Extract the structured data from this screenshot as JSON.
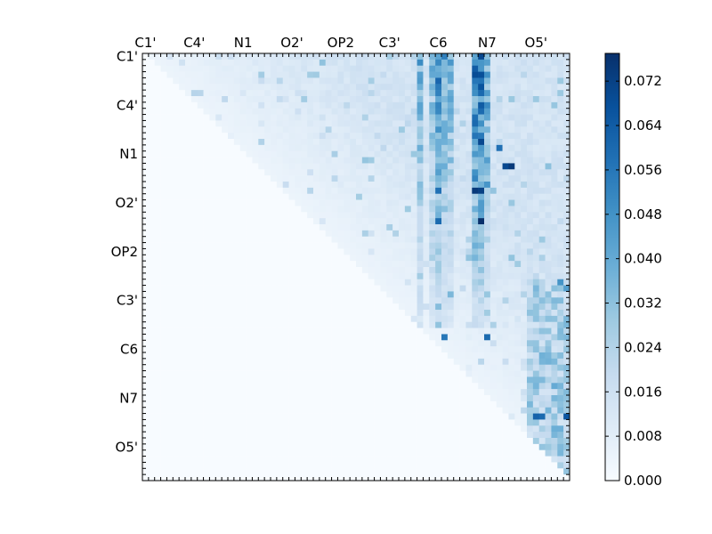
{
  "chart_data": {
    "type": "heatmap",
    "title": "",
    "xlabel": "",
    "ylabel": "",
    "n_rows": 70,
    "n_cols": 70,
    "top_tick_labels": [
      "C1'",
      "C4'",
      "N1",
      "O2'",
      "OP2",
      "C3'",
      "C6",
      "N7",
      "O5'"
    ],
    "left_tick_labels": [
      "C1'",
      "C4'",
      "N1",
      "O2'",
      "OP2",
      "C3'",
      "C6",
      "N7",
      "O5'"
    ],
    "tick_index_step": 8,
    "colormap": "Blues",
    "color_low": "#f7fbff",
    "color_high": "#08306b",
    "colorbar": {
      "range": [
        0.0,
        0.077
      ],
      "tick_labels": [
        "0.000",
        "0.008",
        "0.016",
        "0.024",
        "0.032",
        "0.040",
        "0.048",
        "0.056",
        "0.064",
        "0.072"
      ],
      "tick_values": [
        0.0,
        0.008,
        0.016,
        0.024,
        0.032,
        0.04,
        0.048,
        0.056,
        0.064,
        0.072
      ]
    },
    "lower_triangle_value": 0.0,
    "band_columns": [
      {
        "col": 45,
        "value": 0.04
      },
      {
        "col": 47,
        "value": 0.034
      },
      {
        "col": 48,
        "value": 0.052
      },
      {
        "col": 49,
        "value": 0.044
      },
      {
        "col": 50,
        "value": 0.038
      },
      {
        "col": 54,
        "value": 0.06
      },
      {
        "col": 55,
        "value": 0.066
      },
      {
        "col": 56,
        "value": 0.04
      }
    ],
    "hot_cells": [
      {
        "row": 0,
        "col": 55,
        "value": 0.07
      },
      {
        "row": 2,
        "col": 54,
        "value": 0.064
      },
      {
        "row": 6,
        "col": 55,
        "value": 0.06
      },
      {
        "row": 14,
        "col": 55,
        "value": 0.07
      },
      {
        "row": 15,
        "col": 58,
        "value": 0.058
      },
      {
        "row": 18,
        "col": 59,
        "value": 0.07
      },
      {
        "row": 18,
        "col": 60,
        "value": 0.074
      },
      {
        "row": 22,
        "col": 54,
        "value": 0.074
      },
      {
        "row": 22,
        "col": 55,
        "value": 0.072
      },
      {
        "row": 22,
        "col": 48,
        "value": 0.058
      },
      {
        "row": 27,
        "col": 55,
        "value": 0.077
      },
      {
        "row": 27,
        "col": 48,
        "value": 0.06
      },
      {
        "row": 46,
        "col": 49,
        "value": 0.056
      },
      {
        "row": 46,
        "col": 56,
        "value": 0.06
      },
      {
        "row": 59,
        "col": 64,
        "value": 0.062
      },
      {
        "row": 59,
        "col": 65,
        "value": 0.06
      },
      {
        "row": 59,
        "col": 69,
        "value": 0.066
      },
      {
        "row": 38,
        "col": 69,
        "value": 0.044
      },
      {
        "row": 54,
        "col": 67,
        "value": 0.04
      }
    ],
    "right_block": {
      "row_start": 37,
      "col_start": 63,
      "value": 0.026
    }
  }
}
